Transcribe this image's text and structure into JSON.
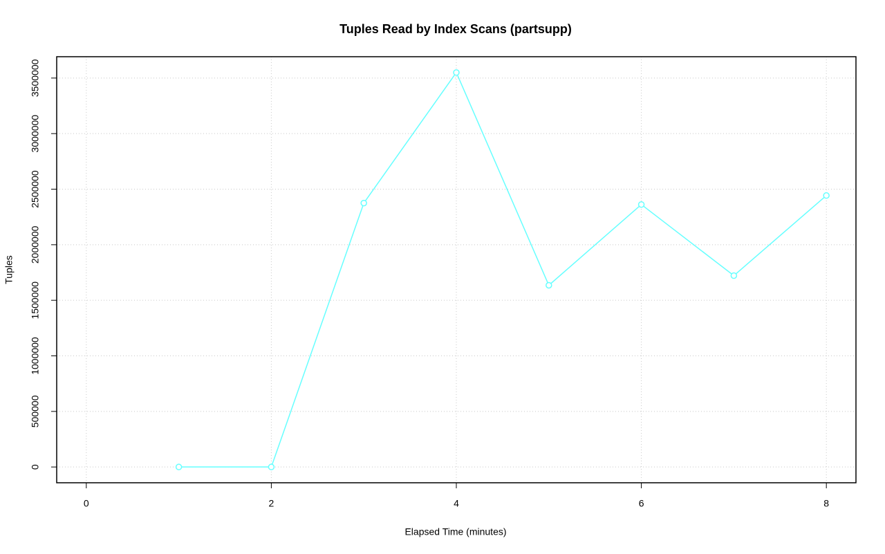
{
  "chart_data": {
    "type": "line",
    "title": "Tuples Read by Index Scans (partsupp)",
    "x_label": "Elapsed Time (minutes)",
    "y_label": "Tuples",
    "x": [
      1,
      2,
      3,
      4,
      5,
      6,
      7,
      8
    ],
    "series": [
      {
        "color": "#66ffff",
        "values": [
          0,
          0,
          2375000,
          3550000,
          1635000,
          2362000,
          1722000,
          2443000
        ]
      }
    ],
    "xlim": [
      -0.32,
      8.32
    ],
    "xticks": [
      0,
      2,
      4,
      6,
      8
    ],
    "ylim": [
      -142000,
      3692000
    ],
    "yticks": [
      0,
      500000,
      1000000,
      1500000,
      2000000,
      2500000,
      3000000,
      3500000
    ],
    "grid": true
  }
}
